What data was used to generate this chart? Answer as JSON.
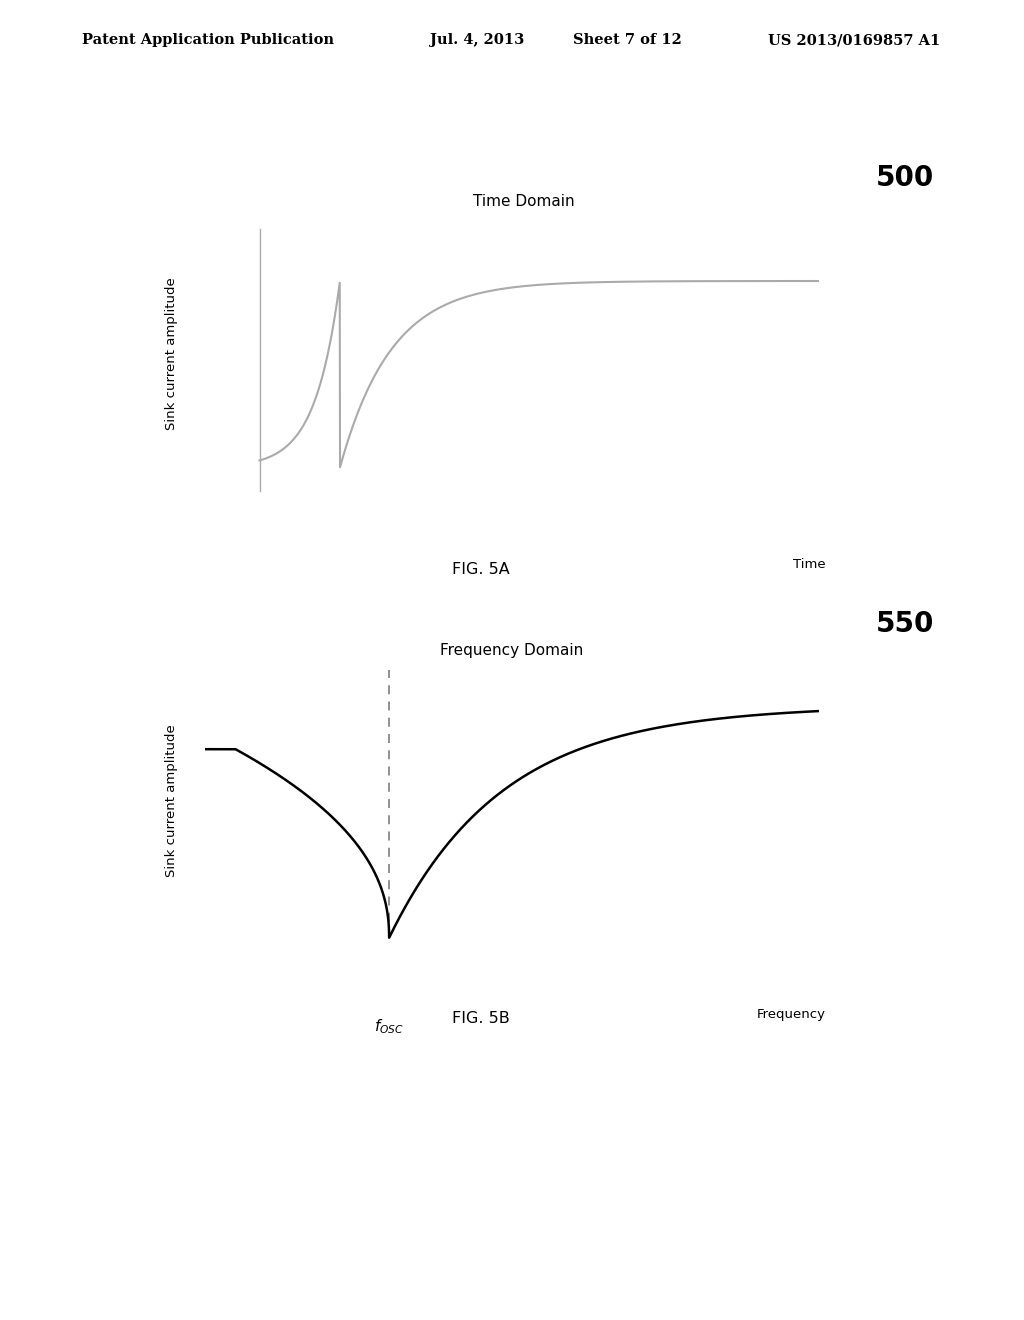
{
  "background_color": "#ffffff",
  "header_text": "Patent Application Publication",
  "header_date": "Jul. 4, 2013",
  "header_sheet": "Sheet 7 of 12",
  "header_patent": "US 2013/0169857 A1",
  "fig5a_label": "FIG. 5A",
  "fig5b_label": "FIG. 5B",
  "fig5a_number": "500",
  "fig5b_number": "550",
  "fig5a_title": "Time Domain",
  "fig5b_title": "Frequency Domain",
  "fig5a_ylabel": "Sink current amplitude",
  "fig5b_ylabel": "Sink current amplitude",
  "fig5a_xlabel": "Time",
  "fig5b_xlabel": "Frequency",
  "curve_color_5a": "#aaaaaa",
  "curve_color_5b": "#000000",
  "dashed_color": "#888888"
}
